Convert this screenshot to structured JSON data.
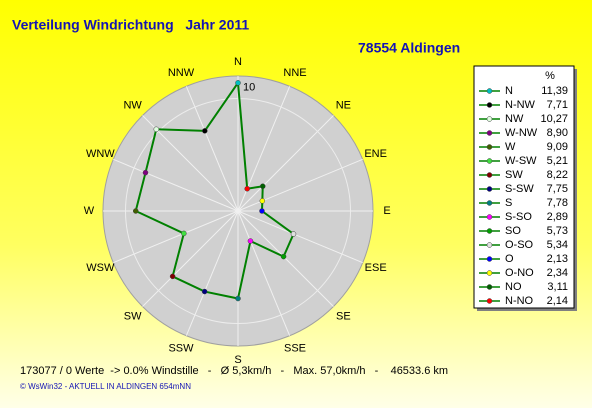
{
  "chart_data": {
    "type": "radar",
    "title": "Verteilung Windrichtung   Jahr 2011",
    "subtitle": "78554 Aldingen",
    "axis_labels": [
      "N",
      "NNE",
      "NE",
      "ENE",
      "E",
      "ESE",
      "SE",
      "SSE",
      "S",
      "SSW",
      "SW",
      "WSW",
      "W",
      "WNW",
      "NW",
      "NNW"
    ],
    "legend_title": "%",
    "categories": [
      "N",
      "N-NW",
      "NW",
      "W-NW",
      "W",
      "W-SW",
      "SW",
      "S-SW",
      "S",
      "S-SO",
      "SO",
      "O-SO",
      "O",
      "O-NO",
      "NO",
      "N-NO"
    ],
    "values": [
      11.39,
      7.71,
      10.27,
      8.9,
      9.09,
      5.21,
      8.22,
      7.75,
      7.78,
      2.89,
      5.73,
      5.34,
      2.13,
      2.34,
      3.11,
      2.14
    ],
    "value_labels": [
      "11,39",
      "7,71",
      "10,27",
      "8,90",
      "9,09",
      "5,21",
      "8,22",
      "7,75",
      "7,78",
      "2,89",
      "5,73",
      "5,34",
      "2,13",
      "2,34",
      "3,11",
      "2,14"
    ],
    "colors": [
      "#00c0c0",
      "#000000",
      "#e0ffe0",
      "#800080",
      "#406000",
      "#40e040",
      "#800000",
      "#000080",
      "#008080",
      "#ff00ff",
      "#00a000",
      "#e0e0e0",
      "#0000ff",
      "#ffff00",
      "#006000",
      "#ff0000"
    ],
    "line_color": "#008000",
    "rlim": [
      0,
      12
    ],
    "rticks": [
      10
    ],
    "footer": "173077 / 0 Werte  -> 0.0% Windstille   -   Ø 5,3km/h   -   Max. 57,0km/h   -    46533.6 km",
    "credit": "© WsWin32  -  AKTUELL IN ALDINGEN 654mNN"
  }
}
